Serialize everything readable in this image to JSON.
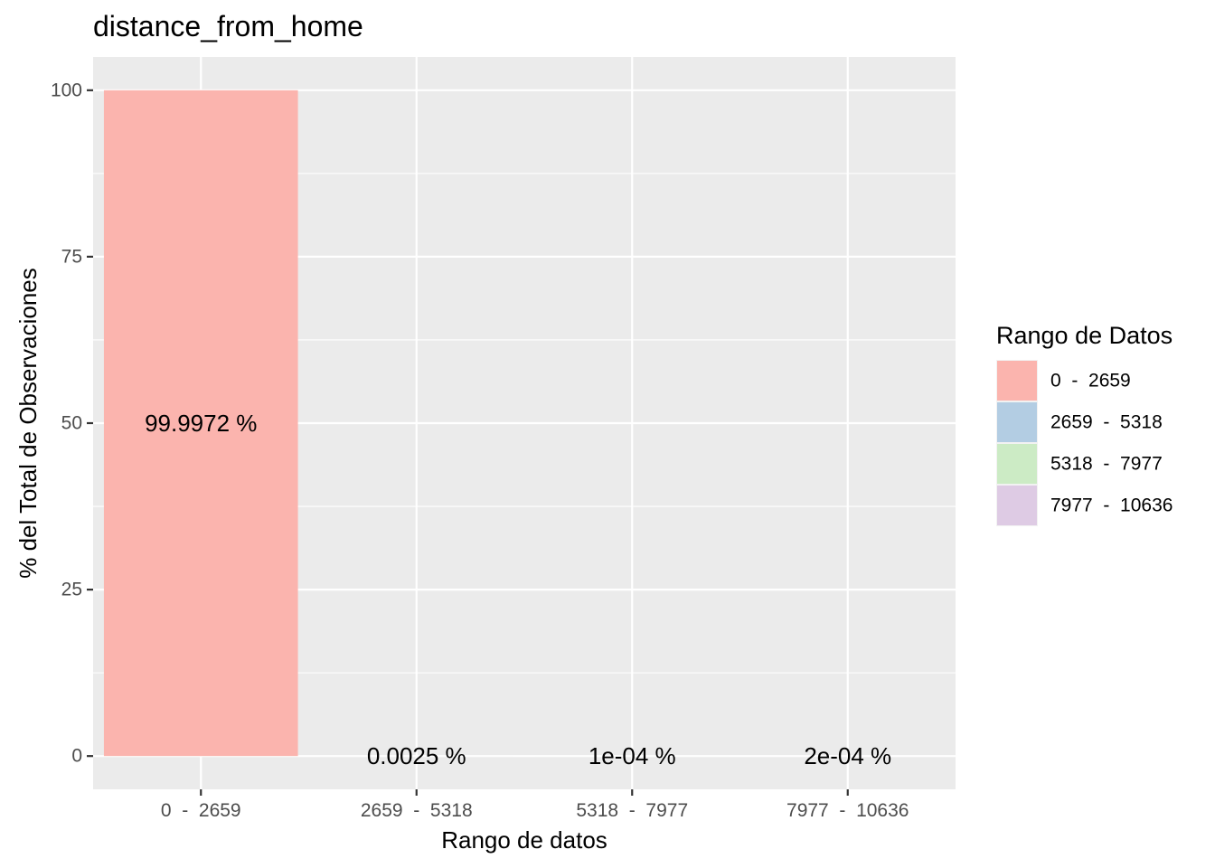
{
  "chart_data": {
    "type": "bar",
    "title": "distance_from_home",
    "xlabel": "Rango de datos",
    "ylabel": "% del Total de Observaciones",
    "categories": [
      "0  -  2659",
      "2659  -  5318",
      "5318  -  7977",
      "7977  -  10636"
    ],
    "values": [
      99.9972,
      0.0025,
      0.0001,
      0.0002
    ],
    "data_labels": [
      "99.9972 %",
      "0.0025 %",
      "1e-04 %",
      "2e-04 %"
    ],
    "ylim": [
      -5,
      105
    ],
    "yticks": [
      0,
      25,
      50,
      75,
      100
    ],
    "grid": true,
    "legend": {
      "title": "Rango de Datos",
      "placement": "right",
      "entries": [
        "0  -  2659",
        "2659  -  5318",
        "5318  -  7977",
        "7977  -  10636"
      ]
    },
    "colors": [
      "#FBB4AE",
      "#B3CDE3",
      "#CCEBC5",
      "#DECBE4"
    ],
    "panel_color": "#EBEBEB",
    "grid_color": "#FFFFFF"
  }
}
